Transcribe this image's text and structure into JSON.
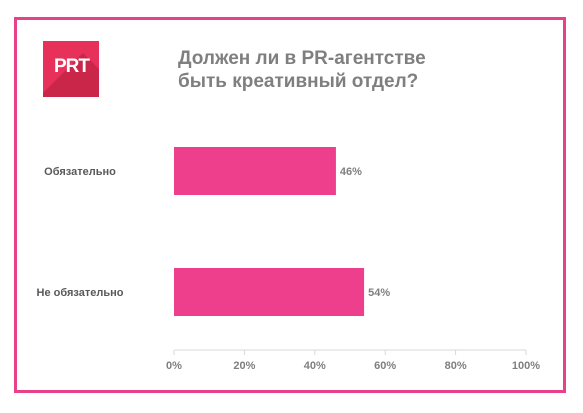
{
  "logo": {
    "text": "PRT"
  },
  "chart_data": {
    "type": "bar",
    "orientation": "horizontal",
    "title": "Должен ли в PR-агентстве\nбыть креативный отдел?",
    "categories": [
      "Обязательно",
      "Не обязательно"
    ],
    "values": [
      46,
      54
    ],
    "data_labels": [
      "46%",
      "54%"
    ],
    "xlim": [
      0,
      100
    ],
    "xticks": [
      "0%",
      "20%",
      "40%",
      "60%",
      "80%",
      "100%"
    ],
    "grid": false,
    "legend": "none",
    "colors": {
      "bar": "#ee3f8c",
      "frame": "#e8418a",
      "logo": "#e8315a"
    }
  }
}
